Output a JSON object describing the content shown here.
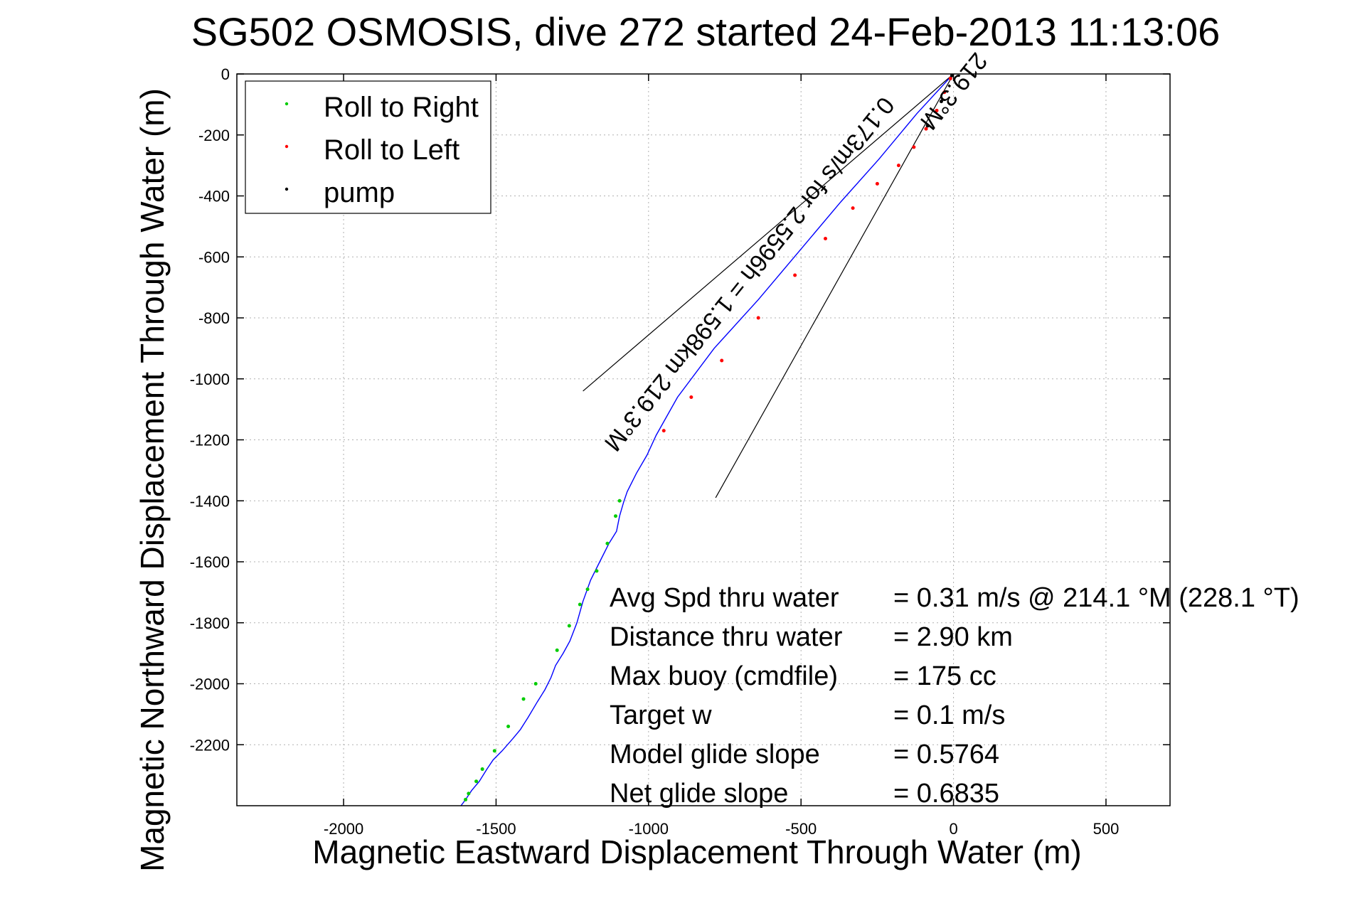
{
  "chart_data": {
    "type": "line",
    "title": "SG502 OSMOSIS, dive 272 started 24-Feb-2013 11:13:06",
    "xlabel": "Magnetic Eastward Displacement Through Water (m)",
    "ylabel": "Magnetic Northward Displacement Through Water (m)",
    "xlim": [
      -2350,
      710
    ],
    "ylim": [
      -2400,
      0
    ],
    "xticks": [
      -2000,
      -1500,
      -1000,
      -500,
      0,
      500
    ],
    "xtick_labels": [
      "-2000",
      "-1500",
      "-1000",
      "-500",
      "0",
      "500"
    ],
    "yticks": [
      0,
      -200,
      -400,
      -600,
      -800,
      -1000,
      -1200,
      -1400,
      -1600,
      -1800,
      -2000,
      -2200
    ],
    "ytick_labels": [
      "0",
      "-200",
      "-400",
      "-600",
      "-800",
      "-1000",
      "-1200",
      "-1400",
      "-1600",
      "-1800",
      "-2000",
      "-2200"
    ],
    "grid": true,
    "legend_position": "top-left",
    "legend": [
      {
        "label": "Roll to Right",
        "color": "#00cc00"
      },
      {
        "label": "Roll to Left",
        "color": "#ff0000"
      },
      {
        "label": "pump",
        "color": "#000000"
      }
    ],
    "series": [
      {
        "name": "track",
        "color": "#0000ff",
        "x": [
          -5,
          -120,
          -245,
          -370,
          -505,
          -640,
          -785,
          -905,
          -975,
          -1005,
          -1040,
          -1070,
          -1082,
          -1095,
          -1105,
          -1130,
          -1160,
          -1190,
          -1215,
          -1235,
          -1258,
          -1280,
          -1305,
          -1320,
          -1340,
          -1365,
          -1395,
          -1420,
          -1445,
          -1480,
          -1510,
          -1530,
          -1555,
          -1580,
          -1600,
          -1615
        ],
        "y": [
          -5,
          -130,
          -280,
          -420,
          -580,
          -740,
          -900,
          -1060,
          -1185,
          -1250,
          -1310,
          -1370,
          -1405,
          -1450,
          -1500,
          -1540,
          -1600,
          -1660,
          -1730,
          -1800,
          -1860,
          -1900,
          -1940,
          -1980,
          -2020,
          -2060,
          -2110,
          -2150,
          -2180,
          -2220,
          -2250,
          -2280,
          -2320,
          -2350,
          -2380,
          -2400
        ]
      }
    ],
    "marker_series": [
      {
        "name": "Roll to Right",
        "color": "#00cc00",
        "x": [
          -1095,
          -1108,
          -1135,
          -1170,
          -1200,
          -1225,
          -1260,
          -1300,
          -1370,
          -1410,
          -1460,
          -1505,
          -1545,
          -1565,
          -1590,
          -1600
        ],
        "y": [
          -1400,
          -1450,
          -1540,
          -1630,
          -1690,
          -1740,
          -1810,
          -1890,
          -2000,
          -2050,
          -2140,
          -2220,
          -2280,
          -2320,
          -2360,
          -2380
        ]
      },
      {
        "name": "Roll to Left",
        "color": "#ff0000",
        "x": [
          -10,
          -30,
          -55,
          -90,
          -130,
          -180,
          -250,
          -330,
          -420,
          -520,
          -640,
          -760,
          -860,
          -950
        ],
        "y": [
          -15,
          -60,
          -120,
          -180,
          -240,
          -300,
          -360,
          -440,
          -540,
          -660,
          -800,
          -940,
          -1060,
          -1170
        ]
      },
      {
        "name": "pump",
        "color": "#000000",
        "x": [
          -5,
          -40,
          -85
        ],
        "y": [
          -5,
          -90,
          -170
        ]
      }
    ],
    "reference_lines": [
      {
        "x": [
          0,
          -1215
        ],
        "y": [
          0,
          -1040
        ]
      },
      {
        "x": [
          0,
          -780
        ],
        "y": [
          0,
          -1390
        ]
      }
    ],
    "rotated_labels": [
      {
        "text": "219.3°M",
        "x": -20,
        "y": -40,
        "upside_down": true
      },
      {
        "text": "0.173m/s for 2.5596h = 1.598km 219.3°M",
        "x": -690,
        "y": -640,
        "upside_down": true
      }
    ],
    "annotations": [
      {
        "label": "Avg Spd thru water",
        "value": "=  0.31 m/s @ 214.1 °M (228.1 °T)"
      },
      {
        "label": "Distance thru water",
        "value": "=  2.90 km"
      },
      {
        "label": "Max buoy (cmdfile)",
        "value": "= 175 cc"
      },
      {
        "label": "Target w",
        "value": "= 0.1 m/s"
      },
      {
        "label": "Model glide slope",
        "value": "= 0.5764"
      },
      {
        "label": "Net glide slope",
        "value": "= 0.6835"
      }
    ]
  }
}
